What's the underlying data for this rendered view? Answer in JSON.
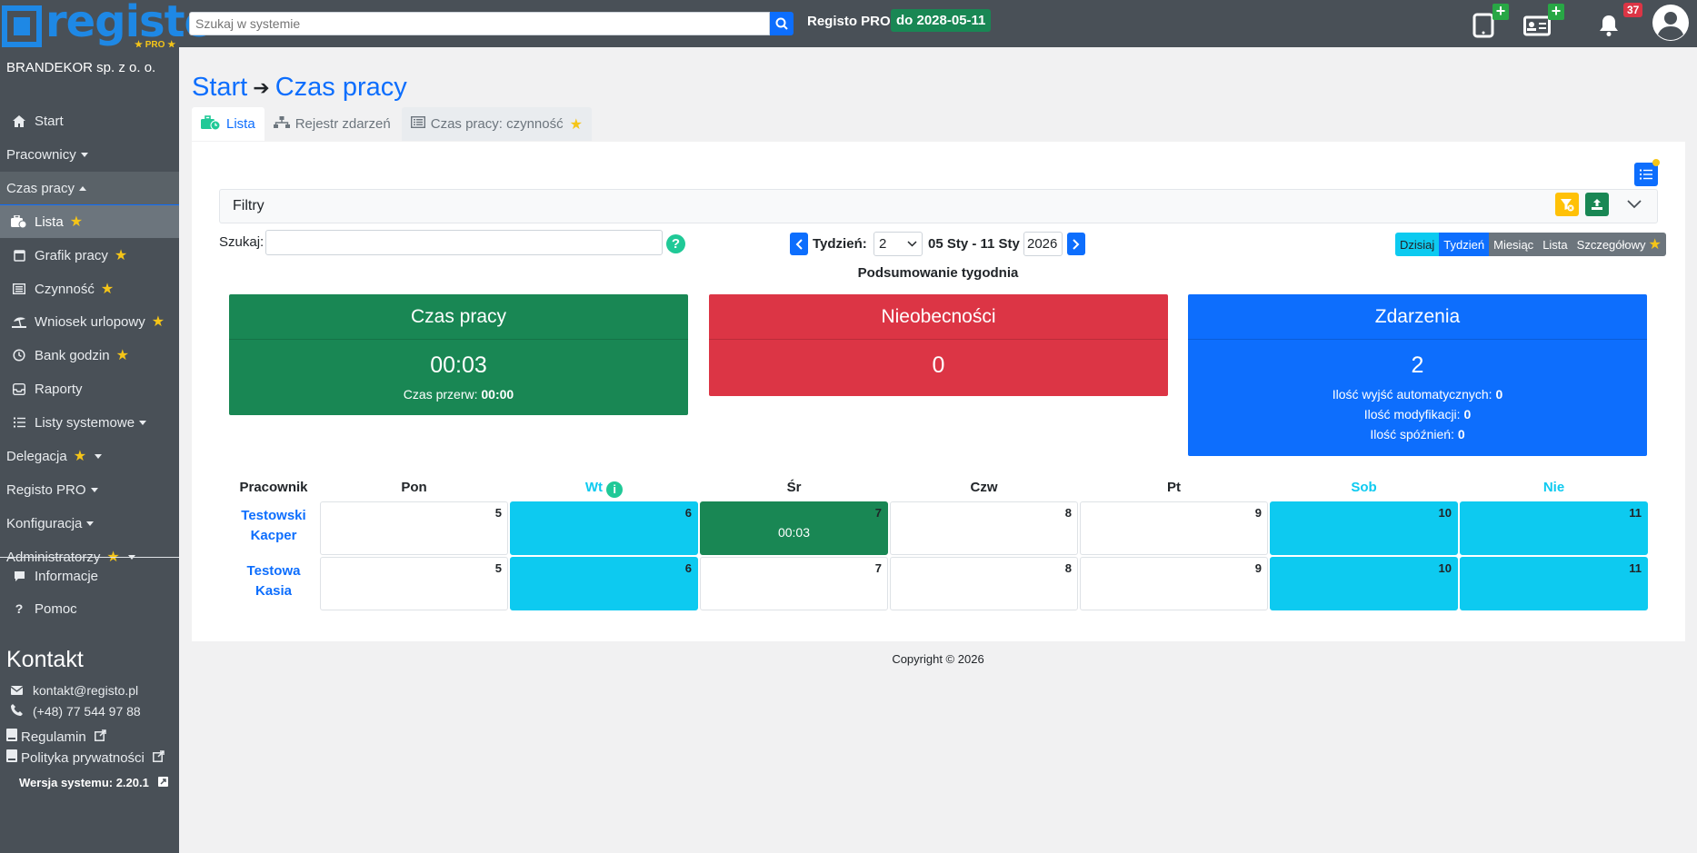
{
  "app": {
    "logo_text": "registo",
    "logo_badge": "★ PRO ★",
    "search_placeholder": "Szukaj w systemie",
    "pro_label": "Registo PRO",
    "pro_until": "do 2028-05-11",
    "notifications_count": "37"
  },
  "sidebar": {
    "company": "BRANDEKOR sp. z o. o.",
    "items": {
      "start": "Start",
      "pracownicy": "Pracownicy",
      "czas_pracy": "Czas pracy",
      "lista": "Lista",
      "grafik": "Grafik pracy",
      "czynnosc": "Czynność",
      "wniosek": "Wniosek urlopowy",
      "bank": "Bank godzin",
      "raporty": "Raporty",
      "listy_systemowe": "Listy systemowe",
      "delegacja": "Delegacja",
      "registo_pro": "Registo PRO",
      "konfiguracja": "Konfiguracja",
      "administratorzy": "Administratorzy",
      "informacje": "Informacje",
      "pomoc": "Pomoc"
    },
    "kontakt_title": "Kontakt",
    "email": "kontakt@registo.pl",
    "phone": "(+48) 77 544 97 88",
    "regulamin": "Regulamin",
    "polityka": "Polityka prywatności",
    "version": "Wersja systemu: 2.20.1"
  },
  "breadcrumb": {
    "start": "Start",
    "current": "Czas pracy"
  },
  "tabs": {
    "lista": "Lista",
    "rejestr": "Rejestr zdarzeń",
    "czynnosc": "Czas pracy: czynność"
  },
  "filters": {
    "label": "Filtry"
  },
  "search": {
    "label": "Szukaj:"
  },
  "week": {
    "label": "Tydzień:",
    "number": "2",
    "range": "05 Sty - 11 Sty",
    "year": "2026"
  },
  "views": {
    "today": "Dzisiaj",
    "week": "Tydzień",
    "month": "Miesiąc",
    "list": "Lista",
    "detailed": "Szczegółowy"
  },
  "summary": {
    "title": "Podsumowanie tygodnia",
    "czas": {
      "title": "Czas pracy",
      "value": "00:03",
      "break_label": "Czas przerw:",
      "break_value": "00:00"
    },
    "nieobecnosci": {
      "title": "Nieobecności",
      "value": "0"
    },
    "zdarzenia": {
      "title": "Zdarzenia",
      "value": "2",
      "auto_label": "Ilość wyjść automatycznych:",
      "auto_value": "0",
      "mod_label": "Ilość modyfikacji:",
      "mod_value": "0",
      "late_label": "Ilość spóźnień:",
      "late_value": "0"
    }
  },
  "table": {
    "employee_header": "Pracownik",
    "days": [
      "Pon",
      "Wt",
      "Śr",
      "Czw",
      "Pt",
      "Sob",
      "Nie"
    ],
    "dates": [
      "5",
      "6",
      "7",
      "8",
      "9",
      "10",
      "11"
    ],
    "employees": [
      {
        "line1": "Testowski",
        "line2": "Kacper",
        "work": "00:03"
      },
      {
        "line1": "Testowa",
        "line2": "Kasia"
      }
    ]
  },
  "footer": "Copyright © 2026",
  "colors": {
    "primary": "#0d6efd",
    "success": "#198754",
    "danger": "#dc3545",
    "info": "#0dcaf0",
    "sidebar": "#495057"
  }
}
